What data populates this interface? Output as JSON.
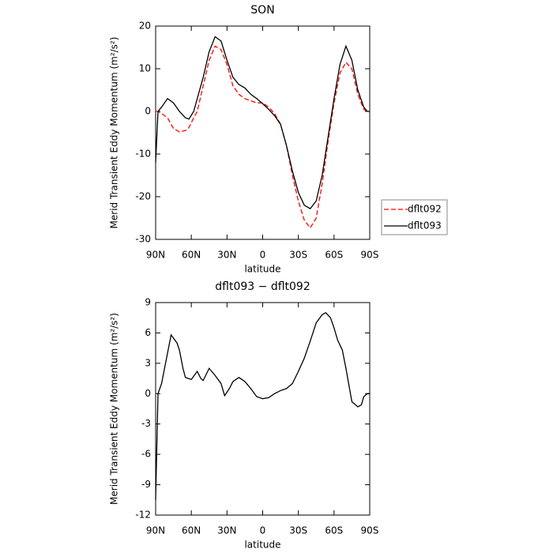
{
  "chart_data": [
    {
      "type": "line",
      "title": "SON",
      "xlabel": "latitude",
      "ylabel": "Merid Transient Eddy Momentum (m²/s²)",
      "xlim": [
        90,
        -90
      ],
      "ylim": [
        -30,
        20
      ],
      "xticks": [
        {
          "value": 90,
          "label": "90N"
        },
        {
          "value": 60,
          "label": "60N"
        },
        {
          "value": 30,
          "label": "30N"
        },
        0,
        {
          "value": -30,
          "label": "30S"
        },
        {
          "value": -60,
          "label": "60S"
        },
        {
          "value": -90,
          "label": "90S"
        }
      ],
      "yticks": [
        -30,
        -20,
        -10,
        0,
        10,
        20
      ],
      "legend": "right",
      "x": [
        90,
        88,
        85,
        80,
        75,
        70,
        65,
        62,
        58,
        55,
        50,
        45,
        40,
        35,
        30,
        25,
        20,
        15,
        10,
        5,
        0,
        -5,
        -10,
        -15,
        -20,
        -25,
        -30,
        -35,
        -40,
        -45,
        -50,
        -55,
        -60,
        -65,
        -70,
        -75,
        -80,
        -85,
        -88,
        -90
      ],
      "series": [
        {
          "name": "dflt092",
          "color": "#ff0000",
          "dash": true,
          "values": [
            0,
            0,
            -0.5,
            -1.5,
            -4,
            -4.8,
            -4.5,
            -3.8,
            -1.5,
            0,
            6,
            12,
            15.3,
            14.5,
            11,
            6,
            4,
            3,
            2.5,
            2,
            2,
            1,
            -0.5,
            -3,
            -8,
            -15,
            -21,
            -25.5,
            -27.3,
            -25,
            -17,
            -7,
            2,
            9,
            11.5,
            10,
            4,
            0.5,
            0,
            0
          ]
        },
        {
          "name": "dflt093",
          "color": "#000000",
          "dash": false,
          "values": [
            -12,
            0,
            1,
            3,
            2,
            0,
            -1.5,
            -1.8,
            0,
            3,
            8,
            14,
            17.5,
            16.5,
            12,
            8,
            6.3,
            5.5,
            4,
            3,
            1.8,
            0.5,
            -1,
            -3,
            -8,
            -14,
            -19,
            -22,
            -22.8,
            -21,
            -15,
            -6,
            3,
            11,
            15.3,
            12,
            5,
            1,
            0,
            0
          ]
        }
      ]
    },
    {
      "type": "line",
      "title": "dflt093 − dflt092",
      "xlabel": "latitude",
      "ylabel": "Merid Transient Eddy Momentum (m²/s²)",
      "xlim": [
        90,
        -90
      ],
      "ylim": [
        -12,
        9
      ],
      "xticks": [
        {
          "value": 90,
          "label": "90N"
        },
        {
          "value": 60,
          "label": "60N"
        },
        {
          "value": 30,
          "label": "30N"
        },
        0,
        {
          "value": -30,
          "label": "30S"
        },
        {
          "value": -60,
          "label": "60S"
        },
        {
          "value": -90,
          "label": "90S"
        }
      ],
      "yticks": [
        -12,
        -9,
        -6,
        -3,
        0,
        3,
        6,
        9
      ],
      "x": [
        90,
        88,
        85,
        80,
        77,
        72,
        70,
        67,
        65,
        60,
        55,
        52,
        50,
        45,
        40,
        35,
        32,
        28,
        25,
        20,
        15,
        10,
        5,
        0,
        -5,
        -10,
        -15,
        -20,
        -25,
        -30,
        -35,
        -40,
        -45,
        -50,
        -53,
        -57,
        -60,
        -63,
        -67,
        -70,
        -75,
        -80,
        -83,
        -85,
        -88,
        -90
      ],
      "series": [
        {
          "color": "#000000",
          "dash": false,
          "values": [
            -10.5,
            0,
            1,
            4,
            5.8,
            5,
            4.3,
            2.5,
            1.6,
            1.4,
            2.2,
            1.5,
            1.3,
            2.5,
            1.8,
            1,
            -0.2,
            0.5,
            1.2,
            1.6,
            1.2,
            0.5,
            -0.3,
            -0.5,
            -0.4,
            0,
            0.3,
            0.5,
            1,
            2.2,
            3.5,
            5.2,
            7,
            7.8,
            8,
            7.5,
            6.5,
            5.3,
            4.3,
            2.5,
            -0.8,
            -1.3,
            -1.1,
            -0.3,
            0,
            0
          ]
        }
      ]
    }
  ]
}
